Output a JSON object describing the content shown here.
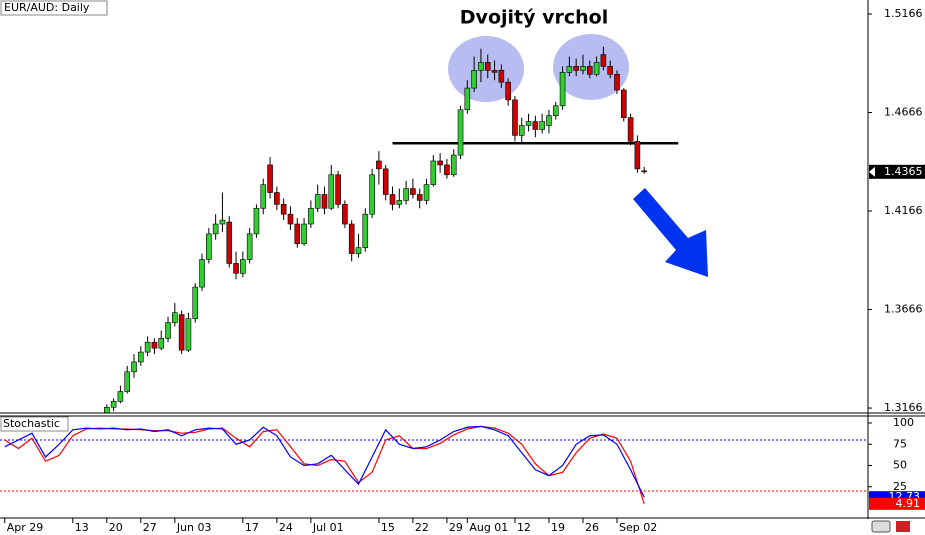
{
  "chart_data": [
    {
      "type": "candlestick",
      "title": "EUR/AUD: Daily",
      "annotation": "Dvojitý vrchol",
      "x": [
        15,
        16,
        17,
        18,
        19,
        20,
        21,
        22,
        23,
        24,
        25,
        26,
        27,
        28,
        29,
        30,
        31,
        32,
        33,
        34,
        35,
        36,
        37,
        38,
        39,
        40,
        41,
        42,
        43,
        44,
        45,
        46,
        47,
        48,
        49,
        50,
        51,
        52,
        53,
        54,
        55,
        56,
        57,
        58,
        59,
        60,
        61,
        62,
        63,
        64,
        65,
        66,
        67,
        68,
        69,
        70,
        71,
        72,
        73,
        74,
        75,
        76,
        77,
        78,
        79,
        80,
        81,
        82,
        83,
        84,
        85,
        86,
        87,
        88,
        89,
        90,
        91,
        92,
        93,
        94
      ],
      "series": {
        "open": [
          1.313,
          1.317,
          1.32,
          1.325,
          1.335,
          1.34,
          1.345,
          1.35,
          1.347,
          1.352,
          1.36,
          1.364,
          1.346,
          1.362,
          1.378,
          1.392,
          1.405,
          1.41,
          1.411,
          1.39,
          1.385,
          1.392,
          1.405,
          1.418,
          1.44,
          1.426,
          1.42,
          1.415,
          1.41,
          1.4,
          1.41,
          1.418,
          1.425,
          1.418,
          1.435,
          1.42,
          1.41,
          1.395,
          1.398,
          1.415,
          1.442,
          1.438,
          1.425,
          1.42,
          1.422,
          1.428,
          1.425,
          1.422,
          1.43,
          1.442,
          1.44,
          1.435,
          1.445,
          1.468,
          1.479,
          1.488,
          1.492,
          1.488,
          1.488,
          1.482,
          1.473,
          1.455,
          1.46,
          1.462,
          1.458,
          1.46,
          1.465,
          1.47,
          1.487,
          1.49,
          1.488,
          1.49,
          1.486,
          1.496,
          1.49,
          1.486,
          1.478,
          1.464,
          1.452,
          1.437
        ],
        "high": [
          1.3185,
          1.3215,
          1.328,
          1.338,
          1.344,
          1.348,
          1.353,
          1.352,
          1.356,
          1.363,
          1.37,
          1.366,
          1.365,
          1.38,
          1.395,
          1.408,
          1.415,
          1.426,
          1.414,
          1.396,
          1.396,
          1.408,
          1.42,
          1.433,
          1.444,
          1.429,
          1.423,
          1.419,
          1.413,
          1.413,
          1.422,
          1.43,
          1.429,
          1.44,
          1.437,
          1.422,
          1.412,
          1.405,
          1.418,
          1.438,
          1.447,
          1.44,
          1.429,
          1.428,
          1.432,
          1.433,
          1.428,
          1.433,
          1.445,
          1.446,
          1.443,
          1.448,
          1.47,
          1.483,
          1.495,
          1.499,
          1.496,
          1.493,
          1.491,
          1.484,
          1.475,
          1.464,
          1.466,
          1.465,
          1.466,
          1.468,
          1.472,
          1.49,
          1.495,
          1.494,
          1.496,
          1.493,
          1.495,
          1.5,
          1.493,
          1.488,
          1.479,
          1.466,
          1.455,
          1.439
        ],
        "low": [
          1.3125,
          1.315,
          1.319,
          1.324,
          1.332,
          1.338,
          1.343,
          1.344,
          1.346,
          1.35,
          1.358,
          1.344,
          1.345,
          1.36,
          1.376,
          1.39,
          1.402,
          1.406,
          1.388,
          1.382,
          1.383,
          1.39,
          1.403,
          1.415,
          1.423,
          1.417,
          1.412,
          1.407,
          1.398,
          1.399,
          1.408,
          1.416,
          1.415,
          1.417,
          1.418,
          1.408,
          1.391,
          1.393,
          1.396,
          1.413,
          1.43,
          1.422,
          1.417,
          1.418,
          1.42,
          1.423,
          1.418,
          1.42,
          1.429,
          1.436,
          1.433,
          1.434,
          1.443,
          1.466,
          1.477,
          1.482,
          1.484,
          1.483,
          1.479,
          1.47,
          1.452,
          1.451,
          1.457,
          1.454,
          1.456,
          1.456,
          1.463,
          1.468,
          1.485,
          1.485,
          1.486,
          1.484,
          1.485,
          1.488,
          1.484,
          1.476,
          1.462,
          1.45,
          1.436,
          1.4355
        ],
        "close": [
          1.317,
          1.32,
          1.325,
          1.335,
          1.34,
          1.345,
          1.35,
          1.347,
          1.352,
          1.36,
          1.365,
          1.346,
          1.362,
          1.378,
          1.392,
          1.405,
          1.41,
          1.412,
          1.39,
          1.385,
          1.392,
          1.405,
          1.418,
          1.43,
          1.426,
          1.42,
          1.415,
          1.41,
          1.4,
          1.41,
          1.418,
          1.425,
          1.418,
          1.435,
          1.42,
          1.41,
          1.395,
          1.398,
          1.415,
          1.435,
          1.438,
          1.425,
          1.42,
          1.422,
          1.428,
          1.425,
          1.422,
          1.43,
          1.442,
          1.44,
          1.435,
          1.445,
          1.468,
          1.479,
          1.488,
          1.492,
          1.488,
          1.487,
          1.482,
          1.473,
          1.455,
          1.46,
          1.462,
          1.458,
          1.462,
          1.465,
          1.47,
          1.487,
          1.49,
          1.488,
          1.49,
          1.486,
          1.492,
          1.49,
          1.486,
          1.478,
          1.464,
          1.452,
          1.438,
          1.4365
        ]
      },
      "up_color": "#33cc33",
      "down_color": "#cc0000",
      "xlim": [
        -0.7,
        126.9
      ],
      "ylim": [
        1.3141,
        1.5237
      ],
      "yticks": [
        1.3166,
        1.3666,
        1.4166,
        1.4666,
        1.5166
      ],
      "last_price": 1.4365,
      "neckline": {
        "y": 1.451,
        "x": [
          57,
          99
        ]
      }
    },
    {
      "type": "line",
      "title": "Stochastic",
      "x": [
        0,
        2,
        4,
        6,
        8,
        10,
        12,
        14,
        16,
        18,
        20,
        22,
        24,
        26,
        28,
        30,
        32,
        34,
        36,
        38,
        40,
        42,
        44,
        46,
        48,
        50,
        52,
        54,
        56,
        58,
        60,
        62,
        64,
        66,
        68,
        70,
        72,
        74,
        76,
        78,
        80,
        82,
        84,
        86,
        88,
        90,
        92,
        94
      ],
      "series": [
        {
          "color": "#0000ff",
          "values": [
            72,
            80,
            88,
            60,
            75,
            92,
            94,
            93,
            94,
            92,
            93,
            90,
            92,
            85,
            92,
            94,
            93,
            75,
            80,
            95,
            85,
            60,
            50,
            52,
            62,
            45,
            28,
            60,
            92,
            75,
            70,
            72,
            80,
            90,
            95,
            96,
            92,
            85,
            65,
            45,
            38,
            50,
            75,
            85,
            86,
            75,
            45,
            12.73
          ]
        },
        {
          "color": "#ff0000",
          "values": [
            80,
            70,
            82,
            55,
            62,
            85,
            93,
            94,
            93,
            93,
            92,
            91,
            91,
            88,
            89,
            93,
            94,
            82,
            72,
            90,
            92,
            72,
            52,
            50,
            57,
            55,
            30,
            42,
            80,
            85,
            70,
            70,
            76,
            86,
            93,
            96,
            94,
            88,
            75,
            52,
            38,
            42,
            65,
            82,
            87,
            82,
            55,
            4.91
          ]
        }
      ],
      "xlim": [
        -0.7,
        126.9
      ],
      "ylim": [
        0,
        100
      ],
      "yticks": [
        25,
        50,
        75,
        100
      ],
      "levels": [
        {
          "value": 80,
          "color": "#0000ff"
        },
        {
          "value": 20,
          "color": "#ff0000"
        }
      ],
      "xticks": [
        {
          "value": 0,
          "label": "Apr 29"
        },
        {
          "value": 10,
          "label": "13"
        },
        {
          "value": 15,
          "label": "20"
        },
        {
          "value": 20,
          "label": "27"
        },
        {
          "value": 25,
          "label": "Jun 03"
        },
        {
          "value": 35,
          "label": "17"
        },
        {
          "value": 40,
          "label": "24"
        },
        {
          "value": 45,
          "label": "Jul 01"
        },
        {
          "value": 55,
          "label": "15"
        },
        {
          "value": 60,
          "label": "22"
        },
        {
          "value": 65,
          "label": "29"
        },
        {
          "value": 68,
          "label": "Aug 01"
        },
        {
          "value": 75,
          "label": "12"
        },
        {
          "value": 80,
          "label": "19"
        },
        {
          "value": 85,
          "label": "26"
        },
        {
          "value": 90,
          "label": "Sep 02"
        }
      ]
    }
  ]
}
